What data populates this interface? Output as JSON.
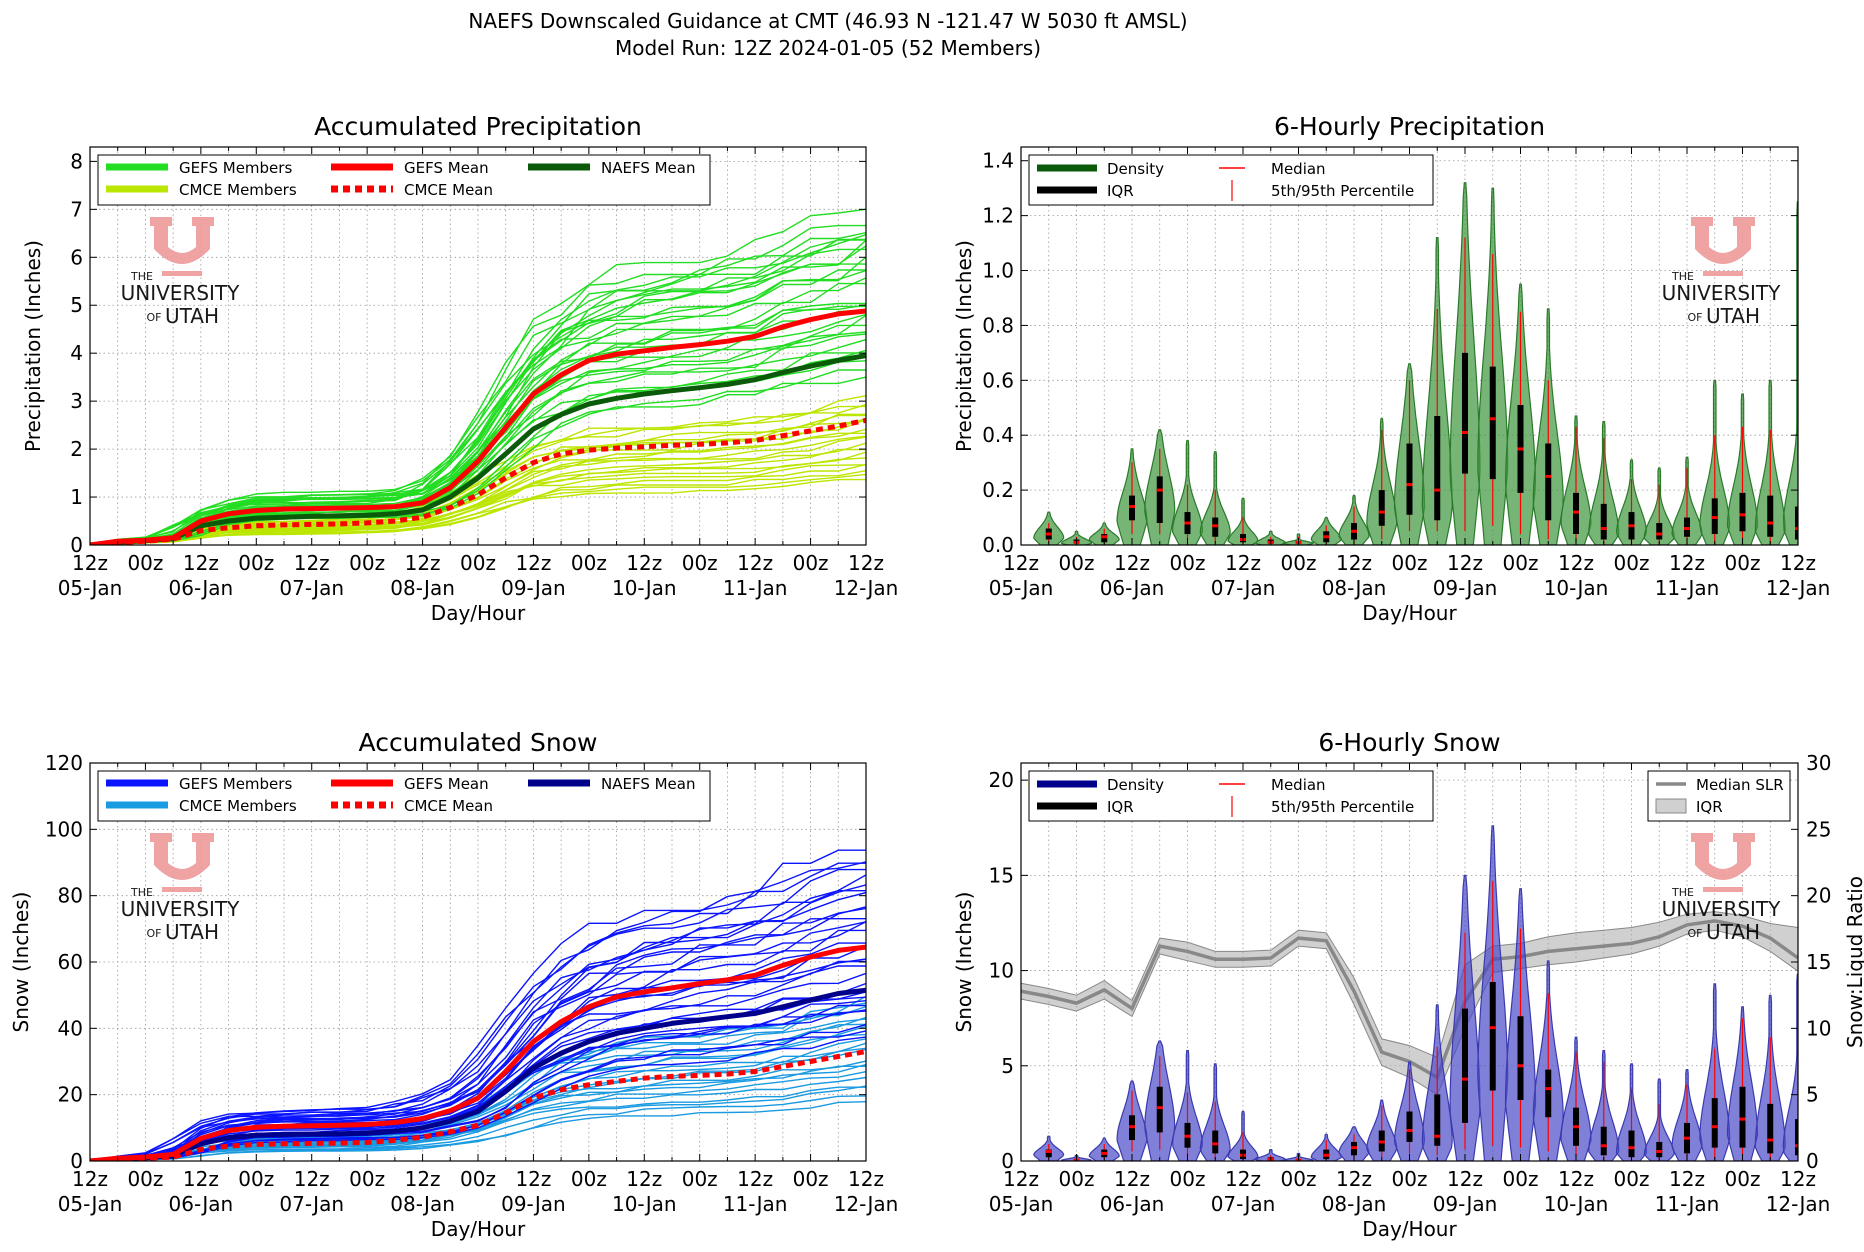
{
  "suptitle": {
    "line1": "NAEFS Downscaled Guidance at CMT (46.93 N -121.47 W 5030 ft AMSL)",
    "line2": "Model Run: 12Z 2024-01-05 (52 Members)"
  },
  "watermark": {
    "the": "THE",
    "university": "UNIVERSITY",
    "of": "OF",
    "utah": "UTAH"
  },
  "colors": {
    "gefs_precip": "#22dd22",
    "cmce_precip": "#bbe600",
    "gefs_snow": "#0a14ff",
    "cmce_snow": "#1a9ae0",
    "gefs_mean": "#ff0000",
    "cmce_mean": "#ff0000",
    "naefs_mean_precip": "#0a5a0a",
    "naefs_mean_snow": "#00008b",
    "violin_precip": "#3c963c",
    "violin_snow": "#4a4ac8",
    "slr": "#888888",
    "logo": "#ee9a9a"
  },
  "x_ticks": {
    "hours": [
      "12z",
      "00z",
      "12z",
      "00z",
      "12z",
      "00z",
      "12z",
      "00z",
      "12z",
      "00z",
      "12z",
      "00z",
      "12z",
      "00z",
      "12z"
    ],
    "days": [
      "05-Jan",
      "06-Jan",
      "07-Jan",
      "08-Jan",
      "09-Jan",
      "10-Jan",
      "11-Jan",
      "12-Jan"
    ]
  },
  "chart_data": [
    {
      "type": "line",
      "title": "Accumulated Precipitation",
      "xlabel": "Day/Hour",
      "ylabel": "Precipitation (Inches)",
      "xlim": [
        0,
        168
      ],
      "ylim": [
        0,
        8.3
      ],
      "yticks": [
        "0",
        "1",
        "2",
        "3",
        "4",
        "5",
        "6",
        "7",
        "8"
      ],
      "grid": true,
      "legend": {
        "position": "top-left",
        "items": [
          {
            "label": "GEFS Members",
            "style": "gefs_member"
          },
          {
            "label": "CMCE Members",
            "style": "cmce_member"
          },
          {
            "label": "GEFS Mean",
            "style": "gefs_mean"
          },
          {
            "label": "CMCE Mean",
            "style": "cmce_mean"
          },
          {
            "label": "NAEFS Mean",
            "style": "naefs_mean"
          }
        ]
      },
      "x": [
        0,
        6,
        12,
        18,
        24,
        30,
        36,
        42,
        48,
        54,
        60,
        66,
        72,
        78,
        84,
        90,
        96,
        102,
        108,
        114,
        120,
        126,
        132,
        138,
        144,
        150,
        156,
        162,
        168
      ],
      "series": [
        {
          "name": "GEFS Mean",
          "values": [
            0,
            0.08,
            0.1,
            0.15,
            0.5,
            0.65,
            0.72,
            0.75,
            0.76,
            0.77,
            0.78,
            0.8,
            0.88,
            1.2,
            1.75,
            2.45,
            3.15,
            3.55,
            3.85,
            3.98,
            4.05,
            4.12,
            4.18,
            4.25,
            4.35,
            4.55,
            4.7,
            4.82,
            4.88
          ]
        },
        {
          "name": "CMCE Mean",
          "values": [
            0,
            0.05,
            0.08,
            0.12,
            0.3,
            0.36,
            0.4,
            0.42,
            0.43,
            0.44,
            0.46,
            0.5,
            0.58,
            0.78,
            1.05,
            1.4,
            1.72,
            1.9,
            1.98,
            2.02,
            2.05,
            2.08,
            2.1,
            2.13,
            2.18,
            2.28,
            2.38,
            2.48,
            2.6
          ]
        },
        {
          "name": "NAEFS Mean",
          "values": [
            0,
            0.06,
            0.09,
            0.13,
            0.4,
            0.5,
            0.56,
            0.58,
            0.6,
            0.61,
            0.62,
            0.65,
            0.73,
            1.0,
            1.4,
            1.9,
            2.42,
            2.72,
            2.94,
            3.06,
            3.15,
            3.22,
            3.28,
            3.35,
            3.45,
            3.6,
            3.73,
            3.85,
            3.95
          ]
        }
      ],
      "member_spread": {
        "gefs_final_range": [
          3.6,
          6.85
        ],
        "cmce_final_range": [
          1.4,
          3.1
        ]
      }
    },
    {
      "type": "violin",
      "title": "6-Hourly Precipitation",
      "xlabel": "Day/Hour",
      "ylabel": "Precipitation (Inches)",
      "xlim": [
        0,
        168
      ],
      "ylim": [
        0,
        1.45
      ],
      "yticks": [
        "0.0",
        "0.2",
        "0.4",
        "0.6",
        "0.8",
        "1.0",
        "1.2",
        "1.4"
      ],
      "grid": true,
      "legend": {
        "position": "top-left",
        "items": [
          {
            "label": "Density",
            "style": "density"
          },
          {
            "label": "IQR",
            "style": "iqr"
          },
          {
            "label": "Median",
            "style": "median"
          },
          {
            "label": "5th/95th Percentile",
            "style": "pct"
          }
        ]
      },
      "x": [
        6,
        12,
        18,
        24,
        30,
        36,
        42,
        48,
        54,
        60,
        66,
        72,
        78,
        84,
        90,
        96,
        102,
        108,
        114,
        120,
        126,
        132,
        138,
        144,
        150,
        156,
        162,
        168
      ],
      "max": [
        0.12,
        0.05,
        0.08,
        0.35,
        0.42,
        0.38,
        0.34,
        0.17,
        0.05,
        0.04,
        0.1,
        0.18,
        0.46,
        0.66,
        1.12,
        1.32,
        1.3,
        0.95,
        0.86,
        0.47,
        0.45,
        0.31,
        0.28,
        0.32,
        0.6,
        0.55,
        0.6,
        1.25
      ],
      "p95": [
        0.08,
        0.03,
        0.06,
        0.3,
        0.35,
        0.22,
        0.2,
        0.1,
        0.03,
        0.03,
        0.07,
        0.14,
        0.42,
        0.6,
        0.86,
        1.12,
        1.06,
        0.85,
        0.6,
        0.43,
        0.39,
        0.24,
        0.22,
        0.28,
        0.4,
        0.43,
        0.42,
        0.5
      ],
      "q3": [
        0.06,
        0.02,
        0.04,
        0.18,
        0.25,
        0.12,
        0.1,
        0.04,
        0.02,
        0.01,
        0.05,
        0.08,
        0.2,
        0.37,
        0.47,
        0.7,
        0.65,
        0.51,
        0.37,
        0.19,
        0.15,
        0.12,
        0.08,
        0.1,
        0.17,
        0.19,
        0.18,
        0.14
      ],
      "median": [
        0.04,
        0.01,
        0.03,
        0.14,
        0.2,
        0.08,
        0.07,
        0.02,
        0.01,
        0.01,
        0.03,
        0.05,
        0.12,
        0.22,
        0.2,
        0.41,
        0.46,
        0.35,
        0.25,
        0.12,
        0.06,
        0.07,
        0.04,
        0.06,
        0.1,
        0.11,
        0.08,
        0.06
      ],
      "q1": [
        0.02,
        0.005,
        0.01,
        0.09,
        0.08,
        0.04,
        0.03,
        0.01,
        0.005,
        0.005,
        0.01,
        0.02,
        0.07,
        0.11,
        0.09,
        0.26,
        0.24,
        0.19,
        0.09,
        0.04,
        0.02,
        0.02,
        0.02,
        0.03,
        0.04,
        0.05,
        0.03,
        0.02
      ],
      "p5": [
        0.01,
        0.0,
        0.0,
        0.04,
        0.04,
        0.02,
        0.01,
        0.0,
        0.0,
        0.0,
        0.0,
        0.0,
        0.02,
        0.05,
        0.05,
        0.05,
        0.07,
        0.04,
        0.02,
        0.01,
        0.0,
        0.0,
        0.0,
        0.0,
        0.0,
        0.0,
        0.0,
        0.0
      ]
    },
    {
      "type": "line",
      "title": "Accumulated Snow",
      "xlabel": "Day/Hour",
      "ylabel": "Snow (Inches)",
      "xlim": [
        0,
        168
      ],
      "ylim": [
        0,
        120
      ],
      "yticks": [
        "0",
        "20",
        "40",
        "60",
        "80",
        "100",
        "120"
      ],
      "grid": true,
      "legend": {
        "position": "top-left",
        "items": [
          {
            "label": "GEFS Members",
            "style": "gefs_member"
          },
          {
            "label": "CMCE Members",
            "style": "cmce_member"
          },
          {
            "label": "GEFS Mean",
            "style": "gefs_mean"
          },
          {
            "label": "CMCE Mean",
            "style": "cmce_mean"
          },
          {
            "label": "NAEFS Mean",
            "style": "naefs_mean"
          }
        ]
      },
      "x": [
        0,
        6,
        12,
        18,
        24,
        30,
        36,
        42,
        48,
        54,
        60,
        66,
        72,
        78,
        84,
        90,
        96,
        102,
        108,
        114,
        120,
        126,
        132,
        138,
        144,
        150,
        156,
        162,
        168
      ],
      "series": [
        {
          "name": "GEFS Mean",
          "values": [
            0,
            0.8,
            1.2,
            2,
            6.8,
            9.2,
            10.2,
            10.5,
            10.6,
            10.8,
            11,
            11.6,
            12.8,
            15.2,
            19,
            27,
            36,
            42,
            46.5,
            49.5,
            51,
            52.2,
            53.5,
            54.6,
            56,
            59,
            61.5,
            63.5,
            64.5
          ]
        },
        {
          "name": "CMCE Mean",
          "values": [
            0,
            0.5,
            0.8,
            1.2,
            3.5,
            4.5,
            5,
            5.2,
            5.3,
            5.4,
            5.6,
            6.2,
            7.2,
            8.8,
            10.8,
            14.5,
            19,
            21.5,
            23,
            24,
            25,
            25.5,
            25.8,
            26.2,
            27,
            28.5,
            30,
            31.5,
            33
          ]
        },
        {
          "name": "NAEFS Mean",
          "values": [
            0,
            0.6,
            1,
            1.6,
            5.2,
            7,
            7.8,
            8,
            8.1,
            8.2,
            8.4,
            9,
            10,
            12,
            15,
            21,
            28,
            32.5,
            36,
            38.5,
            40,
            41.5,
            42.5,
            43.5,
            44.5,
            46.5,
            48.5,
            50.5,
            51.5
          ]
        }
      ],
      "member_spread": {
        "gefs_final_range": [
          38,
          92
        ],
        "cmce_final_range": [
          18,
          50
        ]
      }
    },
    {
      "type": "violin",
      "title": "6-Hourly Snow",
      "xlabel": "Day/Hour",
      "ylabel": "Snow (Inches)",
      "y2label": "Snow:Liqud Ratio",
      "xlim": [
        0,
        168
      ],
      "ylim": [
        0,
        20.9
      ],
      "yticks": [
        "0",
        "5",
        "10",
        "15",
        "20"
      ],
      "y2lim": [
        0,
        30
      ],
      "y2ticks": [
        "0",
        "5",
        "10",
        "15",
        "20",
        "25",
        "30"
      ],
      "grid": true,
      "legend": {
        "position": "top-left",
        "items": [
          {
            "label": "Density",
            "style": "density"
          },
          {
            "label": "IQR",
            "style": "iqr"
          },
          {
            "label": "Median",
            "style": "median"
          },
          {
            "label": "5th/95th Percentile",
            "style": "pct"
          }
        ]
      },
      "legend2": {
        "position": "top-right",
        "items": [
          {
            "label": "Median SLR",
            "style": "slr_line"
          },
          {
            "label": "IQR",
            "style": "slr_band"
          }
        ]
      },
      "x": [
        6,
        12,
        18,
        24,
        30,
        36,
        42,
        48,
        54,
        60,
        66,
        72,
        78,
        84,
        90,
        96,
        102,
        108,
        114,
        120,
        126,
        132,
        138,
        144,
        150,
        156,
        162,
        168
      ],
      "max": [
        1.3,
        0.3,
        1.2,
        4.2,
        6.3,
        5.8,
        5.1,
        2.6,
        0.6,
        0.4,
        1.4,
        1.8,
        3.2,
        5.2,
        8.2,
        15,
        17.6,
        14.3,
        10.5,
        6.5,
        5.8,
        5.1,
        4.3,
        4.8,
        9.3,
        8.1,
        8.7,
        9.8
      ],
      "p95": [
        0.9,
        0.2,
        0.9,
        3.7,
        5.5,
        3.6,
        3.1,
        1.5,
        0.3,
        0.3,
        1.1,
        1.4,
        2.9,
        4.8,
        6,
        12,
        14.7,
        12.2,
        8.8,
        5.7,
        5.2,
        3.8,
        3,
        4,
        5.9,
        7.5,
        6.5,
        6.2
      ],
      "q3": [
        0.6,
        0.1,
        0.6,
        2.4,
        3.9,
        2,
        1.6,
        0.6,
        0.2,
        0.1,
        0.6,
        1,
        1.6,
        2.6,
        3.5,
        8,
        9.4,
        7.6,
        4.8,
        2.8,
        1.8,
        1.6,
        1,
        2,
        3.3,
        3.9,
        3,
        2.2
      ],
      "median": [
        0.5,
        0.05,
        0.4,
        1.8,
        2.8,
        1.3,
        0.9,
        0.3,
        0.1,
        0.05,
        0.3,
        0.7,
        1,
        1.6,
        1.3,
        4.3,
        7,
        5,
        3.8,
        1.8,
        0.8,
        0.7,
        0.5,
        1.2,
        1.8,
        2.2,
        1.1,
        0.8
      ],
      "q1": [
        0.2,
        0.02,
        0.2,
        1.1,
        1.5,
        0.7,
        0.4,
        0.1,
        0.05,
        0.02,
        0.1,
        0.3,
        0.5,
        1,
        0.8,
        2,
        3.7,
        3.2,
        2.3,
        0.8,
        0.3,
        0.2,
        0.2,
        0.4,
        0.7,
        0.7,
        0.4,
        0.3
      ],
      "p5": [
        0.1,
        0,
        0.05,
        0.5,
        0.6,
        0.2,
        0.1,
        0,
        0,
        0,
        0,
        0.1,
        0.2,
        0.4,
        0.3,
        0.6,
        0.8,
        0.7,
        0.5,
        0.2,
        0,
        0,
        0,
        0,
        0.1,
        0.1,
        0,
        0
      ],
      "slr_median": {
        "x": [
          0,
          6,
          12,
          18,
          24,
          30,
          36,
          42,
          48,
          54,
          60,
          66,
          72,
          78,
          84,
          90,
          96,
          102,
          108,
          114,
          120,
          126,
          132,
          138,
          144,
          150,
          156,
          162,
          168
        ],
        "values": [
          12.8,
          12.4,
          11.9,
          12.9,
          11.5,
          16.2,
          15.8,
          15.2,
          15.2,
          15.3,
          16.8,
          16.6,
          12.8,
          8.2,
          7.5,
          6.3,
          12,
          15.2,
          15.4,
          15.8,
          16,
          16.2,
          16.4,
          16.9,
          17.8,
          18.1,
          17.7,
          16.8,
          15.3
        ],
        "iqr_low": [
          12.2,
          11.8,
          11.3,
          12.2,
          10.9,
          15.6,
          15.1,
          14.6,
          14.6,
          14.7,
          16.2,
          16,
          11.8,
          7.2,
          6.3,
          5,
          10,
          14.2,
          14.5,
          14.8,
          15,
          15.3,
          15.6,
          16.2,
          17.1,
          17.4,
          16.9,
          15.8,
          14.3
        ],
        "iqr_high": [
          13.4,
          13,
          12.5,
          13.6,
          12.1,
          16.8,
          16.5,
          15.8,
          15.8,
          15.9,
          17.4,
          17.2,
          13.8,
          9.2,
          8.7,
          7.8,
          14.8,
          16.2,
          16.4,
          16.9,
          17.2,
          17.4,
          17.6,
          18,
          18.6,
          18.8,
          18.5,
          17.9,
          17.6
        ]
      }
    }
  ]
}
